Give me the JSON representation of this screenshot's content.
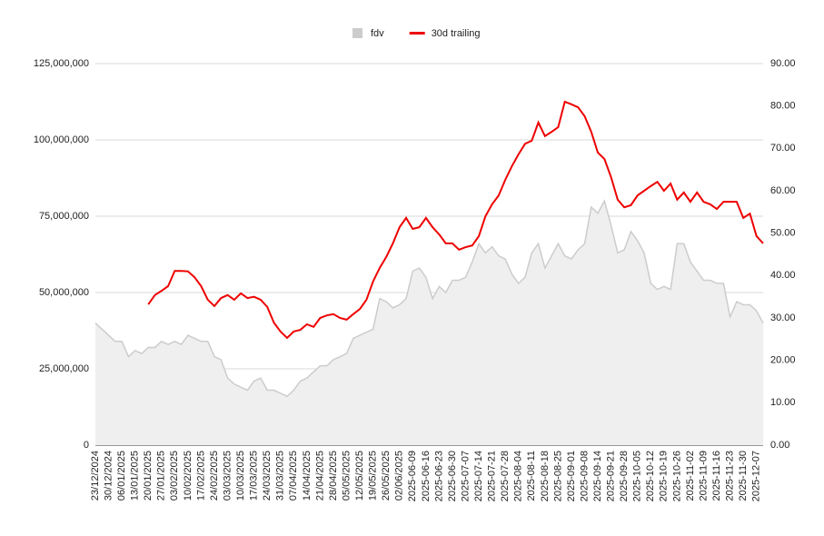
{
  "chart_data": {
    "type": "combo",
    "grid": true,
    "legend": "top",
    "categories": [
      "23/12/2024",
      null,
      "30/12/2024",
      null,
      "06/01/2025",
      null,
      "13/01/2025",
      null,
      "20/01/2025",
      null,
      "27/01/2025",
      null,
      "03/02/2025",
      null,
      "10/02/2025",
      null,
      "17/02/2025",
      null,
      "24/02/2025",
      null,
      "03/03/2025",
      null,
      "10/03/2025",
      null,
      "17/03/2025",
      null,
      "24/03/2025",
      null,
      "31/03/2025",
      null,
      "07/04/2025",
      null,
      "14/04/2025",
      null,
      "21/04/2025",
      null,
      "28/04/2025",
      null,
      "05/05/2025",
      null,
      "12/05/2025",
      null,
      "19/05/2025",
      null,
      "26/05/2025",
      null,
      "02/06/2025",
      null,
      "2025-06-09",
      null,
      "2025-06-16",
      null,
      "2025-06-23",
      null,
      "2025-06-30",
      null,
      "2025-07-07",
      null,
      "2025-07-14",
      null,
      "2025-07-21",
      null,
      "2025-07-28",
      null,
      "2025-08-04",
      null,
      "2025-08-11",
      null,
      "2025-08-18",
      null,
      "2025-08-25",
      null,
      "2025-09-01",
      null,
      "2025-09-08",
      null,
      "2025-09-14",
      null,
      "2025-09-21",
      null,
      "2025-09-28",
      null,
      "2025-10-05",
      null,
      "2025-10-12",
      null,
      "2025-10-19",
      null,
      "2025-10-26",
      null,
      "2025-11-02",
      null,
      "2025-11-09",
      null,
      "2025-11-16",
      null,
      "2025-11-23",
      null,
      "2025-11-30",
      null,
      "2025-12-07",
      null
    ],
    "series": [
      {
        "name": "fdv",
        "type": "area",
        "color": "#cccccc",
        "axis": "y",
        "values": [
          40000000,
          38000000,
          36000000,
          34000000,
          34000000,
          29000000,
          31000000,
          30000000,
          32000000,
          32000000,
          34000000,
          33000000,
          34000000,
          33000000,
          36000000,
          35000000,
          34000000,
          34000000,
          29000000,
          28000000,
          22000000,
          20000000,
          19000000,
          18000000,
          21000000,
          22000000,
          18000000,
          18000000,
          17000000,
          16000000,
          18000000,
          21000000,
          22000000,
          24000000,
          26000000,
          26000000,
          28000000,
          29000000,
          30000000,
          35000000,
          36000000,
          37000000,
          38000000,
          48000000,
          47000000,
          45000000,
          46000000,
          48000000,
          57000000,
          58000000,
          55000000,
          48000000,
          52000000,
          50000000,
          54000000,
          54000000,
          55000000,
          60000000,
          66000000,
          63000000,
          65000000,
          62000000,
          61000000,
          56000000,
          53000000,
          55000000,
          63000000,
          66000000,
          58000000,
          62000000,
          66000000,
          62000000,
          61000000,
          64000000,
          66000000,
          78000000,
          76000000,
          80000000,
          72000000,
          63000000,
          64000000,
          70000000,
          67000000,
          63000000,
          53000000,
          51000000,
          52000000,
          51000000,
          66000000,
          66000000,
          60000000,
          57000000,
          54000000,
          54000000,
          53000000,
          53000000,
          42000000,
          47000000,
          46000000,
          46000000,
          44000000,
          40000000
        ]
      },
      {
        "name": "30d trailing",
        "type": "line",
        "color": "#ee0000",
        "axis": "y2",
        "values": [
          null,
          null,
          null,
          null,
          null,
          null,
          null,
          null,
          33.2,
          35.4,
          36.4,
          37.5,
          41.1,
          41.1,
          41,
          39.6,
          37.5,
          34.3,
          32.8,
          34.7,
          35.4,
          34.3,
          35.8,
          34.7,
          35,
          34.3,
          32.6,
          28.9,
          26.8,
          25.3,
          26.8,
          27.2,
          28.5,
          27.9,
          30,
          30.6,
          30.9,
          30,
          29.6,
          30.9,
          32.1,
          34.3,
          38.6,
          41.8,
          44.4,
          47.6,
          51.4,
          53.6,
          51,
          51.4,
          53.6,
          51.4,
          49.7,
          47.6,
          47.6,
          46.1,
          46.7,
          47.1,
          49.3,
          54,
          56.8,
          58.9,
          62.6,
          65.8,
          68.6,
          71.1,
          71.8,
          76.1,
          72.9,
          73.9,
          75,
          81,
          80.4,
          79.7,
          77.6,
          73.9,
          69,
          67.5,
          63.2,
          57.9,
          56.1,
          56.6,
          58.9,
          60,
          61.1,
          62.1,
          60,
          61.7,
          57.9,
          59.6,
          57.4,
          59.6,
          57.4,
          56.8,
          55.7,
          57.4,
          57.4,
          57.4,
          53.6,
          54.6,
          49.3,
          47.6
        ]
      }
    ],
    "ylim": [
      0,
      125000000
    ],
    "yticks": [
      0,
      {
        "value": 25000000,
        "label": "25,000,000"
      },
      {
        "value": 50000000,
        "label": "50,000,000"
      },
      {
        "value": 75000000,
        "label": "75,000,000"
      },
      {
        "value": 100000000,
        "label": "100,000,000"
      },
      {
        "value": 125000000,
        "label": "125,000,000"
      }
    ],
    "y2lim": [
      0,
      90
    ],
    "y2ticks": [
      {
        "value": 0,
        "label": "0.00"
      },
      {
        "value": 10,
        "label": "10.00"
      },
      {
        "value": 20,
        "label": "20.00"
      },
      {
        "value": 30,
        "label": "30.00"
      },
      {
        "value": 40,
        "label": "40.00"
      },
      {
        "value": 50,
        "label": "50.00"
      },
      {
        "value": 60,
        "label": "60.00"
      },
      {
        "value": 70,
        "label": "70.00"
      },
      {
        "value": 80,
        "label": "80.00"
      },
      {
        "value": 90,
        "label": "90.00"
      }
    ]
  }
}
